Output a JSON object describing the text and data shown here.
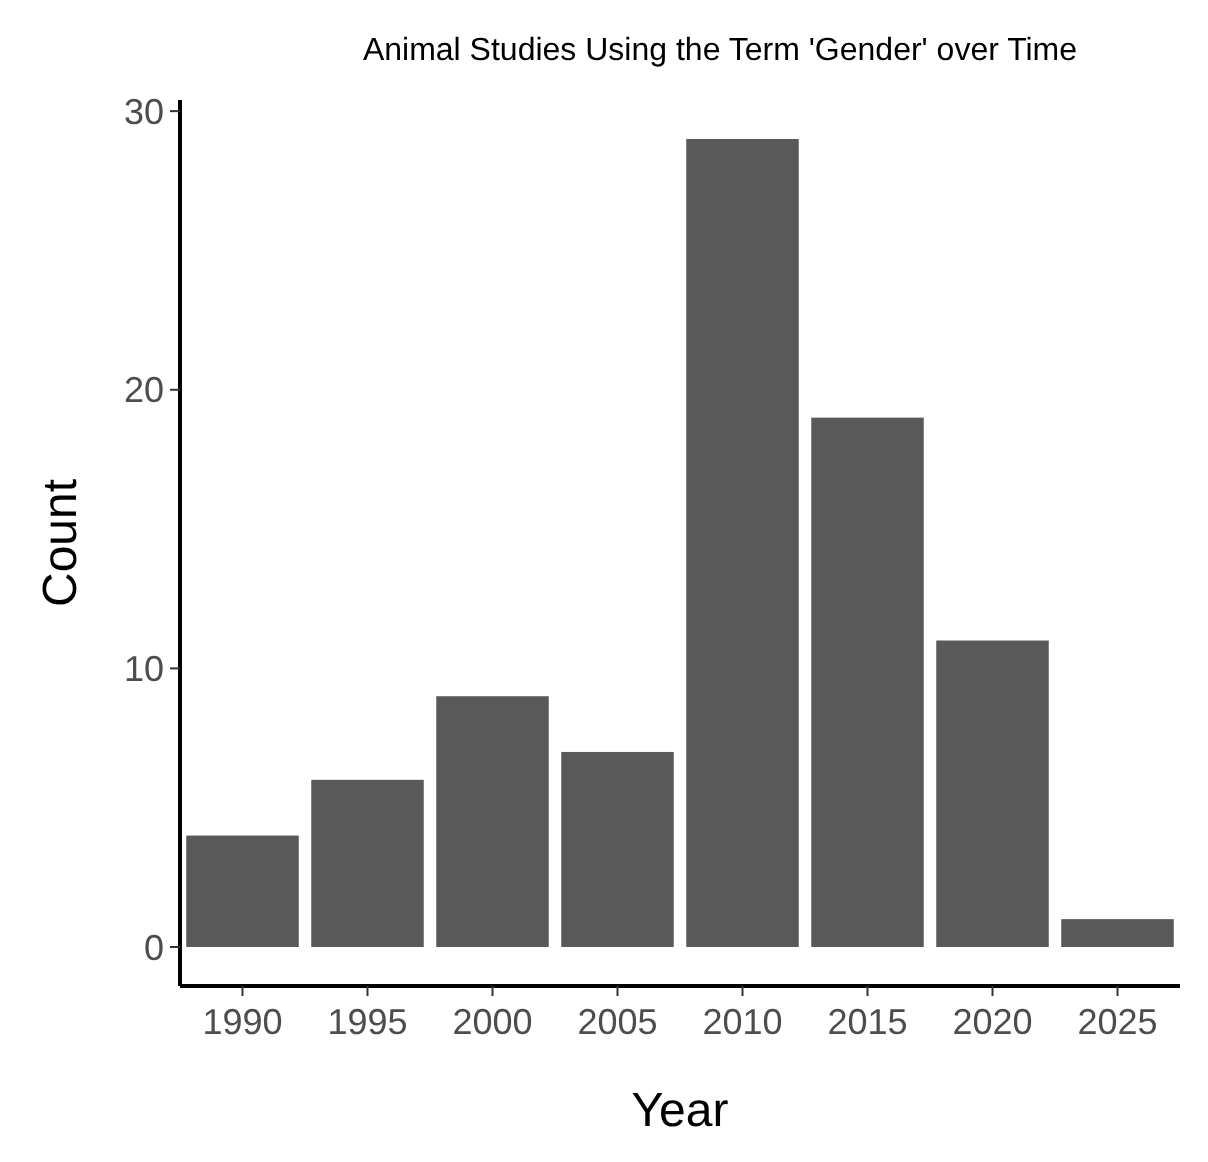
{
  "chart_data": {
    "type": "bar",
    "title": "Animal Studies Using the Term 'Gender' over Time",
    "xlabel": "Year",
    "ylabel": "Count",
    "categories": [
      "1990",
      "1995",
      "2000",
      "2005",
      "2010",
      "2015",
      "2020",
      "2025"
    ],
    "values": [
      4,
      6,
      9,
      7,
      29,
      19,
      11,
      1
    ],
    "color": "#595959",
    "ylim": [
      -1.4,
      30.4
    ],
    "yticks": [
      0,
      10,
      20,
      30
    ],
    "grid": false
  }
}
